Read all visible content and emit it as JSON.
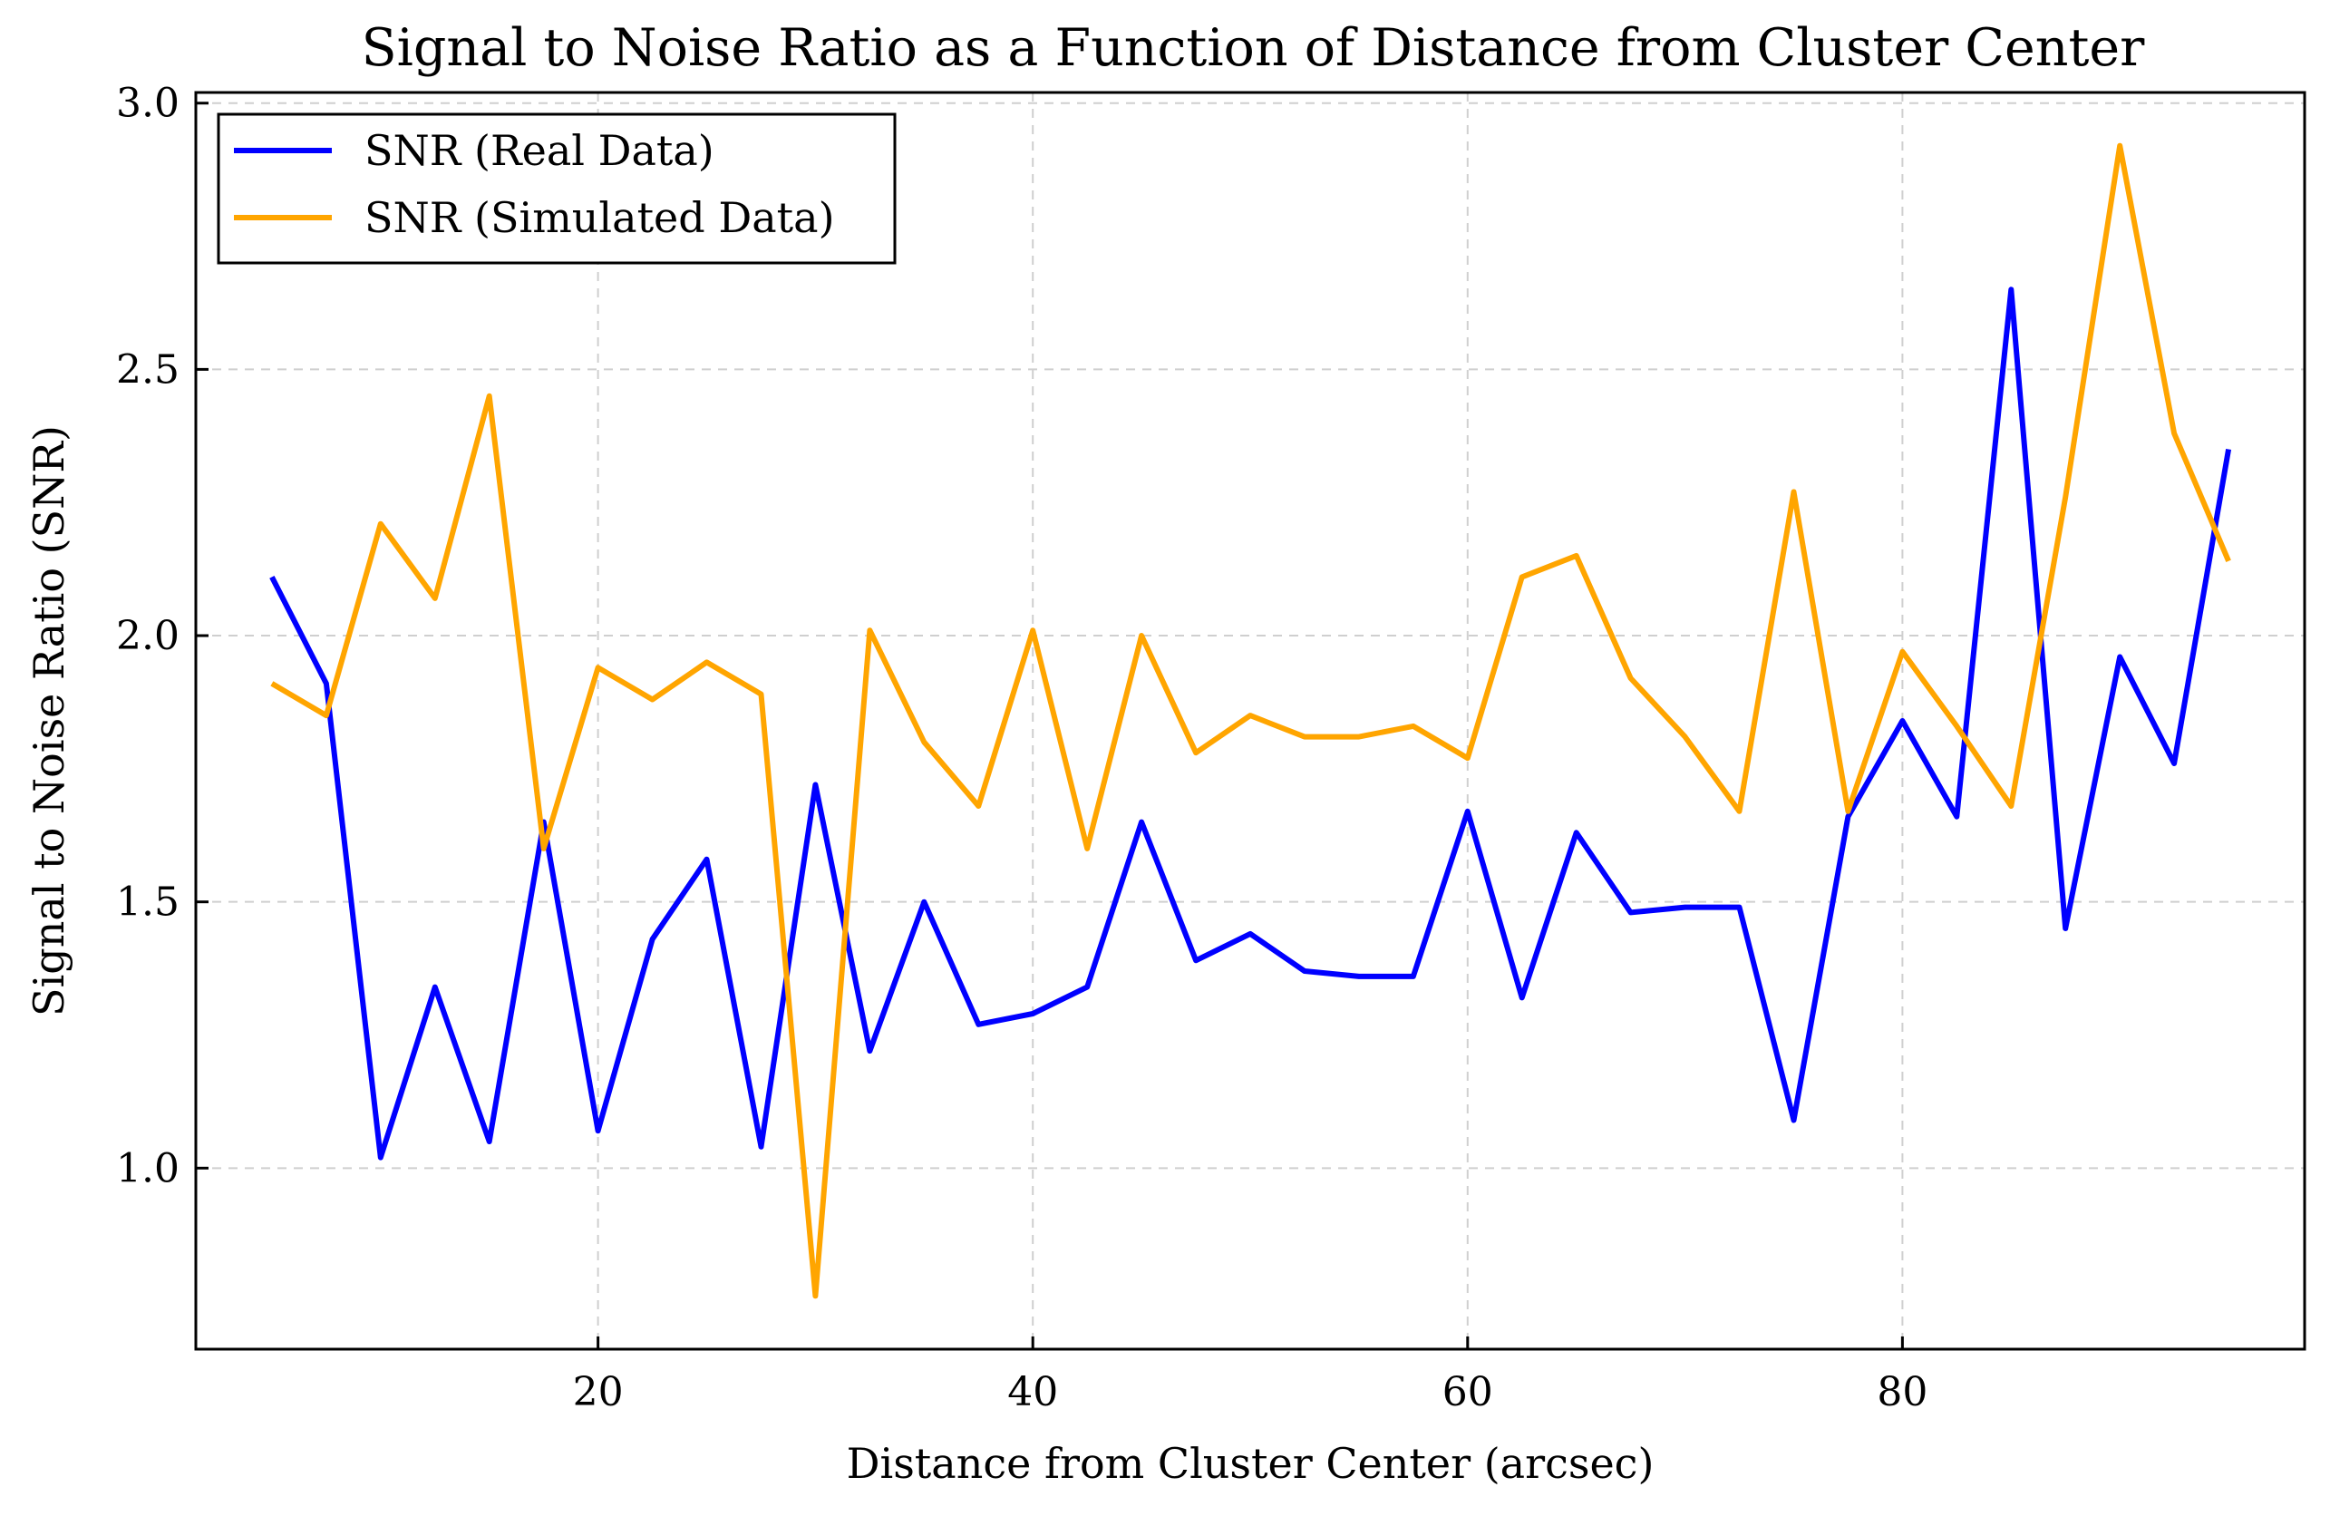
{
  "chart_data": {
    "type": "line",
    "title": "Signal to Noise Ratio as a Function of Distance from Cluster Center",
    "xlabel": "Distance from Cluster Center (arcsec)",
    "ylabel": "Signal to Noise Ratio (SNR)",
    "xlim": [
      1.5,
      98.5
    ],
    "ylim": [
      0.66,
      3.02
    ],
    "xticks": [
      20,
      40,
      60,
      80
    ],
    "xtick_labels": [
      "20",
      "40",
      "60",
      "80"
    ],
    "yticks": [
      1.0,
      1.5,
      2.0,
      2.5,
      3.0
    ],
    "ytick_labels": [
      "1.0",
      "1.5",
      "2.0",
      "2.5",
      "3.0"
    ],
    "grid": true,
    "legend_position": "top-left",
    "x": [
      5.0,
      7.5,
      10.0,
      12.5,
      15.0,
      17.5,
      20.0,
      22.5,
      25.0,
      27.5,
      30.0,
      32.5,
      35.0,
      37.5,
      40.0,
      42.5,
      45.0,
      47.5,
      50.0,
      52.5,
      55.0,
      57.5,
      60.0,
      62.5,
      65.0,
      67.5,
      70.0,
      72.5,
      75.0,
      77.5,
      80.0,
      82.5,
      85.0,
      87.5,
      90.0,
      92.5,
      95.0
    ],
    "series": [
      {
        "name": "SNR (Real Data)",
        "color": "#0000ff",
        "values": [
          2.11,
          1.91,
          1.02,
          1.34,
          1.05,
          1.65,
          1.07,
          1.43,
          1.58,
          1.04,
          1.72,
          1.22,
          1.5,
          1.27,
          1.29,
          1.34,
          1.65,
          1.39,
          1.44,
          1.37,
          1.36,
          1.36,
          1.67,
          1.32,
          1.63,
          1.48,
          1.49,
          1.49,
          1.09,
          1.66,
          1.84,
          1.66,
          2.65,
          1.45,
          1.96,
          1.76,
          2.35
        ]
      },
      {
        "name": "SNR (Simulated Data)",
        "color": "#ffa500",
        "values": [
          1.91,
          1.85,
          2.21,
          2.07,
          2.45,
          1.6,
          1.94,
          1.88,
          1.95,
          1.89,
          0.76,
          2.01,
          1.8,
          1.68,
          2.01,
          1.6,
          2.0,
          1.78,
          1.85,
          1.81,
          1.81,
          1.83,
          1.77,
          2.11,
          2.15,
          1.92,
          1.81,
          1.67,
          2.27,
          1.67,
          1.97,
          1.83,
          1.68,
          2.26,
          2.92,
          2.38,
          2.14
        ]
      }
    ]
  }
}
